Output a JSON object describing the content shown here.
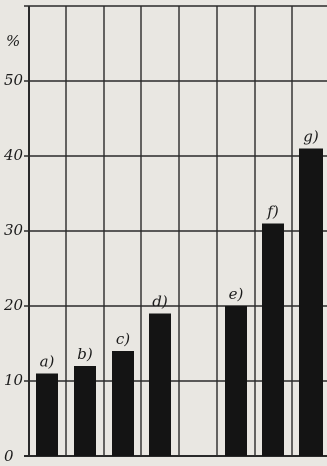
{
  "chart_data": {
    "type": "bar",
    "categories": [
      "a)",
      "b)",
      "c)",
      "d)",
      "e)",
      "f)",
      "g)"
    ],
    "values": [
      11,
      12,
      14,
      19,
      20,
      31,
      41
    ],
    "ylabel": "%",
    "ylim": [
      0,
      60
    ],
    "yticks": [
      "0",
      "10",
      "20",
      "30",
      "40",
      "50"
    ],
    "grid": true,
    "colors": {
      "bar": "#141414",
      "grid": "#2a2a2a",
      "background": "#e9e7e2"
    }
  }
}
